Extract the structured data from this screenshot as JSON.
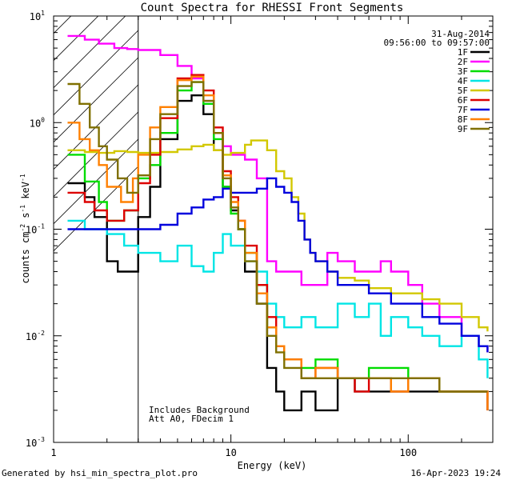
{
  "chart_data": {
    "type": "line",
    "title": "Count Spectra for RHESSI Front Segments",
    "xlabel": "Energy (keV)",
    "ylabel": "counts cm^-2 s^-1 keV^-1",
    "ylabel_parts": {
      "base": "counts cm",
      "exp1": "-2",
      "mid": " s",
      "exp2": "-1",
      "unit": " keV",
      "exp3": "-1"
    },
    "xscale": "log",
    "yscale": "log",
    "xlim": [
      1.0,
      300.0
    ],
    "ylim": [
      0.001,
      10.0
    ],
    "x_ticks": [
      {
        "value": 1,
        "label": "1"
      },
      {
        "value": 10,
        "label": "10"
      },
      {
        "value": 100,
        "label": "100"
      }
    ],
    "y_ticks": [
      {
        "value": 10,
        "base": "10",
        "exp": "1"
      },
      {
        "value": 1,
        "base": "10",
        "exp": "0"
      },
      {
        "value": 0.1,
        "base": "10",
        "exp": "-1"
      },
      {
        "value": 0.01,
        "base": "10",
        "exp": "-2"
      },
      {
        "value": 0.001,
        "base": "10",
        "exp": "-3"
      }
    ],
    "hatch_region": {
      "x_from": 1.0,
      "x_to": 3.0,
      "meaning": "attenuator/threshold region"
    },
    "date": "31-Aug-2014",
    "time_range": "09:56:00 to 09:57:00",
    "annotations": [
      "Includes Background",
      "Att A0, FDecim 1"
    ],
    "footer_left": "Generated by hsi_min_spectra_plot.pro",
    "footer_right": "16-Apr-2023 19:24",
    "series": [
      {
        "name": "1F",
        "color": "#000000",
        "points": [
          [
            1.2,
            0.27
          ],
          [
            1.5,
            0.2
          ],
          [
            1.7,
            0.13
          ],
          [
            2,
            0.05
          ],
          [
            2.3,
            0.04
          ],
          [
            2.6,
            0.04
          ],
          [
            3,
            0.13
          ],
          [
            3.5,
            0.25
          ],
          [
            4,
            0.7
          ],
          [
            5,
            1.6
          ],
          [
            6,
            1.8
          ],
          [
            7,
            1.2
          ],
          [
            8,
            0.55
          ],
          [
            9,
            0.25
          ],
          [
            10,
            0.15
          ],
          [
            11,
            0.1
          ],
          [
            12,
            0.04
          ],
          [
            14,
            0.02
          ],
          [
            16,
            0.005
          ],
          [
            18,
            0.003
          ],
          [
            20,
            0.002
          ],
          [
            25,
            0.003
          ],
          [
            30,
            0.002
          ],
          [
            40,
            0.004
          ],
          [
            50,
            0.003
          ],
          [
            60,
            0.003
          ],
          [
            80,
            0.003
          ],
          [
            100,
            0.003
          ],
          [
            150,
            0.003
          ],
          [
            200,
            0.003
          ],
          [
            280,
            0.002
          ]
        ]
      },
      {
        "name": "2F",
        "color": "#ff00ff",
        "points": [
          [
            1.2,
            6.5
          ],
          [
            1.5,
            6
          ],
          [
            1.8,
            5.5
          ],
          [
            2.2,
            5
          ],
          [
            2.6,
            4.9
          ],
          [
            3,
            4.8
          ],
          [
            4,
            4.3
          ],
          [
            5,
            3.4
          ],
          [
            6,
            2.6
          ],
          [
            7,
            1.6
          ],
          [
            8,
            0.8
          ],
          [
            9,
            0.6
          ],
          [
            10,
            0.5
          ],
          [
            12,
            0.45
          ],
          [
            14,
            0.3
          ],
          [
            16,
            0.05
          ],
          [
            18,
            0.04
          ],
          [
            20,
            0.04
          ],
          [
            25,
            0.03
          ],
          [
            30,
            0.03
          ],
          [
            35,
            0.06
          ],
          [
            40,
            0.05
          ],
          [
            50,
            0.04
          ],
          [
            60,
            0.04
          ],
          [
            70,
            0.05
          ],
          [
            80,
            0.04
          ],
          [
            100,
            0.03
          ],
          [
            120,
            0.02
          ],
          [
            150,
            0.015
          ],
          [
            200,
            0.01
          ],
          [
            250,
            0.008
          ],
          [
            280,
            0.007
          ]
        ]
      },
      {
        "name": "3F",
        "color": "#00dd00",
        "points": [
          [
            1.2,
            0.5
          ],
          [
            1.5,
            0.28
          ],
          [
            1.8,
            0.18
          ],
          [
            2,
            0.12
          ],
          [
            2.5,
            0.15
          ],
          [
            3,
            0.3
          ],
          [
            3.5,
            0.4
          ],
          [
            4,
            0.8
          ],
          [
            5,
            2
          ],
          [
            6,
            2.4
          ],
          [
            7,
            1.5
          ],
          [
            8,
            0.7
          ],
          [
            9,
            0.25
          ],
          [
            10,
            0.14
          ],
          [
            11,
            0.1
          ],
          [
            12,
            0.06
          ],
          [
            14,
            0.03
          ],
          [
            16,
            0.012
          ],
          [
            18,
            0.008
          ],
          [
            20,
            0.006
          ],
          [
            25,
            0.005
          ],
          [
            30,
            0.006
          ],
          [
            40,
            0.004
          ],
          [
            50,
            0.004
          ],
          [
            60,
            0.005
          ],
          [
            80,
            0.005
          ],
          [
            100,
            0.004
          ],
          [
            150,
            0.003
          ],
          [
            200,
            0.003
          ],
          [
            280,
            0.003
          ]
        ]
      },
      {
        "name": "4F",
        "color": "#00e5e5",
        "points": [
          [
            1.2,
            0.12
          ],
          [
            1.5,
            0.1
          ],
          [
            2,
            0.09
          ],
          [
            2.5,
            0.07
          ],
          [
            3,
            0.06
          ],
          [
            4,
            0.05
          ],
          [
            5,
            0.07
          ],
          [
            6,
            0.045
          ],
          [
            7,
            0.04
          ],
          [
            8,
            0.06
          ],
          [
            9,
            0.09
          ],
          [
            10,
            0.07
          ],
          [
            12,
            0.05
          ],
          [
            14,
            0.04
          ],
          [
            16,
            0.02
          ],
          [
            18,
            0.015
          ],
          [
            20,
            0.012
          ],
          [
            25,
            0.015
          ],
          [
            30,
            0.012
          ],
          [
            40,
            0.02
          ],
          [
            50,
            0.015
          ],
          [
            60,
            0.02
          ],
          [
            70,
            0.01
          ],
          [
            80,
            0.015
          ],
          [
            100,
            0.012
          ],
          [
            120,
            0.01
          ],
          [
            150,
            0.008
          ],
          [
            200,
            0.01
          ],
          [
            250,
            0.006
          ],
          [
            280,
            0.004
          ]
        ]
      },
      {
        "name": "5F",
        "color": "#d2c800",
        "points": [
          [
            1.2,
            0.55
          ],
          [
            1.5,
            0.53
          ],
          [
            1.8,
            0.52
          ],
          [
            2.2,
            0.54
          ],
          [
            2.6,
            0.53
          ],
          [
            3,
            0.52
          ],
          [
            4,
            0.53
          ],
          [
            5,
            0.56
          ],
          [
            6,
            0.6
          ],
          [
            7,
            0.62
          ],
          [
            8,
            0.55
          ],
          [
            9,
            0.5
          ],
          [
            10,
            0.52
          ],
          [
            12,
            0.62
          ],
          [
            13,
            0.68
          ],
          [
            14,
            0.68
          ],
          [
            16,
            0.55
          ],
          [
            18,
            0.35
          ],
          [
            20,
            0.3
          ],
          [
            22,
            0.2
          ],
          [
            24,
            0.14
          ],
          [
            26,
            0.08
          ],
          [
            28,
            0.06
          ],
          [
            30,
            0.05
          ],
          [
            35,
            0.04
          ],
          [
            40,
            0.035
          ],
          [
            50,
            0.033
          ],
          [
            60,
            0.028
          ],
          [
            80,
            0.025
          ],
          [
            100,
            0.025
          ],
          [
            120,
            0.022
          ],
          [
            150,
            0.02
          ],
          [
            200,
            0.015
          ],
          [
            250,
            0.012
          ],
          [
            280,
            0.011
          ]
        ]
      },
      {
        "name": "6F",
        "color": "#dd0000",
        "points": [
          [
            1.2,
            0.22
          ],
          [
            1.5,
            0.18
          ],
          [
            1.7,
            0.15
          ],
          [
            2,
            0.12
          ],
          [
            2.5,
            0.15
          ],
          [
            3,
            0.27
          ],
          [
            3.5,
            0.5
          ],
          [
            4,
            1.1
          ],
          [
            5,
            2.6
          ],
          [
            6,
            2.8
          ],
          [
            7,
            2
          ],
          [
            8,
            0.9
          ],
          [
            9,
            0.35
          ],
          [
            10,
            0.2
          ],
          [
            11,
            0.12
          ],
          [
            12,
            0.07
          ],
          [
            14,
            0.03
          ],
          [
            16,
            0.015
          ],
          [
            18,
            0.008
          ],
          [
            20,
            0.006
          ],
          [
            25,
            0.004
          ],
          [
            30,
            0.005
          ],
          [
            40,
            0.004
          ],
          [
            50,
            0.003
          ],
          [
            60,
            0.004
          ],
          [
            80,
            0.003
          ],
          [
            100,
            0.004
          ],
          [
            150,
            0.003
          ],
          [
            200,
            0.003
          ],
          [
            280,
            0.002
          ]
        ]
      },
      {
        "name": "7F",
        "color": "#0000dd",
        "points": [
          [
            1.2,
            0.1
          ],
          [
            1.5,
            0.1
          ],
          [
            2,
            0.1
          ],
          [
            2.5,
            0.1
          ],
          [
            3,
            0.1
          ],
          [
            4,
            0.11
          ],
          [
            5,
            0.14
          ],
          [
            6,
            0.16
          ],
          [
            7,
            0.19
          ],
          [
            8,
            0.2
          ],
          [
            9,
            0.24
          ],
          [
            10,
            0.22
          ],
          [
            12,
            0.22
          ],
          [
            14,
            0.24
          ],
          [
            16,
            0.3
          ],
          [
            18,
            0.25
          ],
          [
            20,
            0.22
          ],
          [
            22,
            0.18
          ],
          [
            24,
            0.12
          ],
          [
            26,
            0.08
          ],
          [
            28,
            0.06
          ],
          [
            30,
            0.05
          ],
          [
            35,
            0.04
          ],
          [
            40,
            0.03
          ],
          [
            50,
            0.03
          ],
          [
            60,
            0.025
          ],
          [
            80,
            0.02
          ],
          [
            100,
            0.02
          ],
          [
            120,
            0.015
          ],
          [
            150,
            0.013
          ],
          [
            200,
            0.01
          ],
          [
            250,
            0.008
          ],
          [
            280,
            0.007
          ]
        ]
      },
      {
        "name": "8F",
        "color": "#ff8000",
        "points": [
          [
            1.2,
            1
          ],
          [
            1.4,
            0.7
          ],
          [
            1.6,
            0.55
          ],
          [
            1.8,
            0.4
          ],
          [
            2,
            0.25
          ],
          [
            2.4,
            0.18
          ],
          [
            2.8,
            0.3
          ],
          [
            3,
            0.5
          ],
          [
            3.5,
            0.9
          ],
          [
            4,
            1.4
          ],
          [
            5,
            2.5
          ],
          [
            6,
            2.7
          ],
          [
            7,
            1.8
          ],
          [
            8,
            0.8
          ],
          [
            9,
            0.32
          ],
          [
            10,
            0.18
          ],
          [
            11,
            0.12
          ],
          [
            12,
            0.06
          ],
          [
            14,
            0.025
          ],
          [
            16,
            0.012
          ],
          [
            18,
            0.008
          ],
          [
            20,
            0.006
          ],
          [
            25,
            0.004
          ],
          [
            30,
            0.005
          ],
          [
            40,
            0.004
          ],
          [
            50,
            0.004
          ],
          [
            60,
            0.004
          ],
          [
            80,
            0.003
          ],
          [
            100,
            0.004
          ],
          [
            150,
            0.003
          ],
          [
            200,
            0.003
          ],
          [
            280,
            0.002
          ]
        ]
      },
      {
        "name": "9F",
        "color": "#807000",
        "points": [
          [
            1.2,
            2.3
          ],
          [
            1.4,
            1.5
          ],
          [
            1.6,
            0.9
          ],
          [
            1.8,
            0.6
          ],
          [
            2,
            0.45
          ],
          [
            2.3,
            0.3
          ],
          [
            2.6,
            0.22
          ],
          [
            3,
            0.32
          ],
          [
            3.5,
            0.7
          ],
          [
            4,
            1.2
          ],
          [
            5,
            2.2
          ],
          [
            6,
            2.4
          ],
          [
            7,
            1.6
          ],
          [
            8,
            0.8
          ],
          [
            9,
            0.3
          ],
          [
            10,
            0.16
          ],
          [
            11,
            0.1
          ],
          [
            12,
            0.05
          ],
          [
            14,
            0.02
          ],
          [
            16,
            0.01
          ],
          [
            18,
            0.007
          ],
          [
            20,
            0.005
          ],
          [
            25,
            0.004
          ],
          [
            30,
            0.004
          ],
          [
            40,
            0.004
          ],
          [
            50,
            0.004
          ],
          [
            60,
            0.004
          ],
          [
            80,
            0.004
          ],
          [
            100,
            0.004
          ],
          [
            150,
            0.003
          ],
          [
            200,
            0.003
          ],
          [
            280,
            0.003
          ]
        ]
      }
    ]
  }
}
